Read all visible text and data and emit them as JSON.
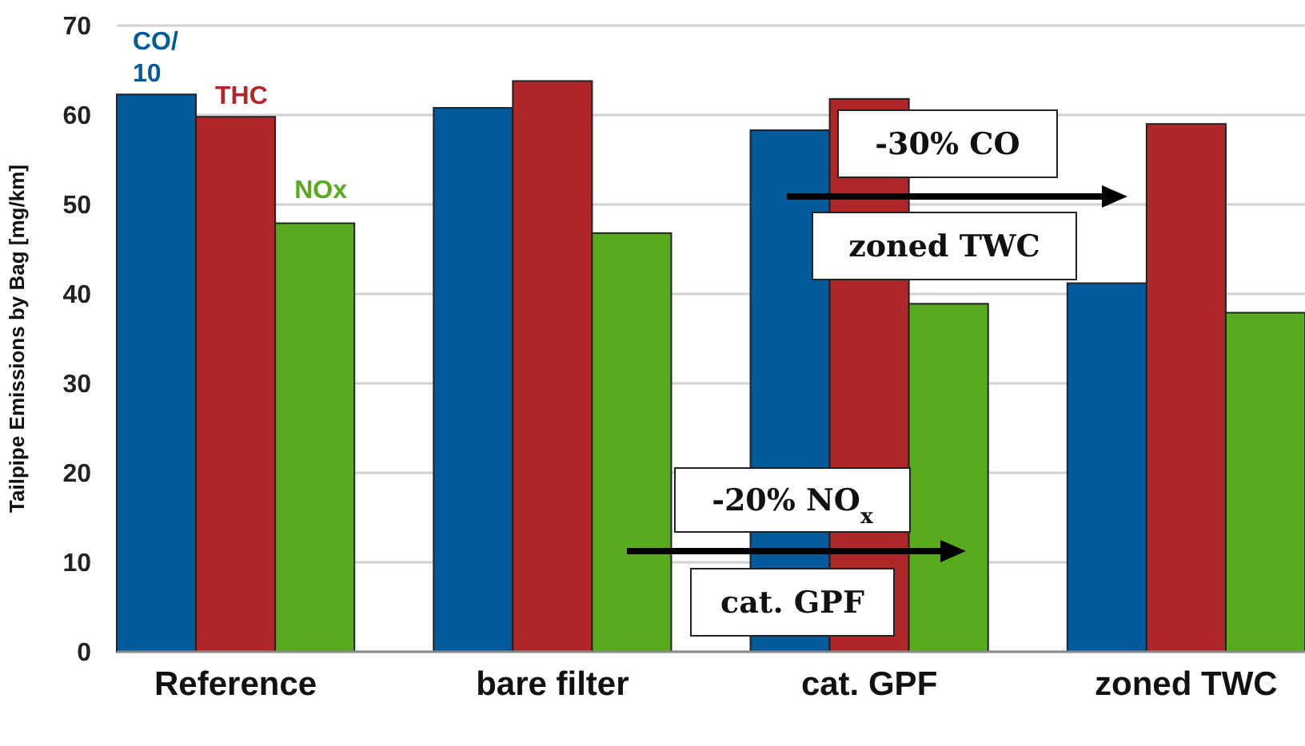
{
  "chart_data": {
    "type": "bar",
    "ylabel": "Tailpipe Emissions by Bag [mg/km]",
    "categories": [
      "Reference",
      "bare filter",
      "cat. GPF",
      "zoned TWC"
    ],
    "series": [
      {
        "name": "CO/10",
        "color": "#005a9c",
        "values": [
          62.3,
          60.8,
          58.3,
          41.2
        ]
      },
      {
        "name": "THC",
        "color": "#b0272a",
        "values": [
          59.8,
          63.8,
          61.8,
          59.0
        ]
      },
      {
        "name": "NOx",
        "color": "#58aa1e",
        "values": [
          47.9,
          46.8,
          38.9,
          37.9
        ]
      }
    ],
    "ylim": [
      0,
      70
    ],
    "yticks": [
      0,
      10,
      20,
      30,
      40,
      50,
      60,
      70
    ],
    "grid": "y",
    "annotations": [
      "-30% CO",
      "zoned TWC",
      "-20% NO$_{x}$",
      "cat. GPF"
    ]
  }
}
